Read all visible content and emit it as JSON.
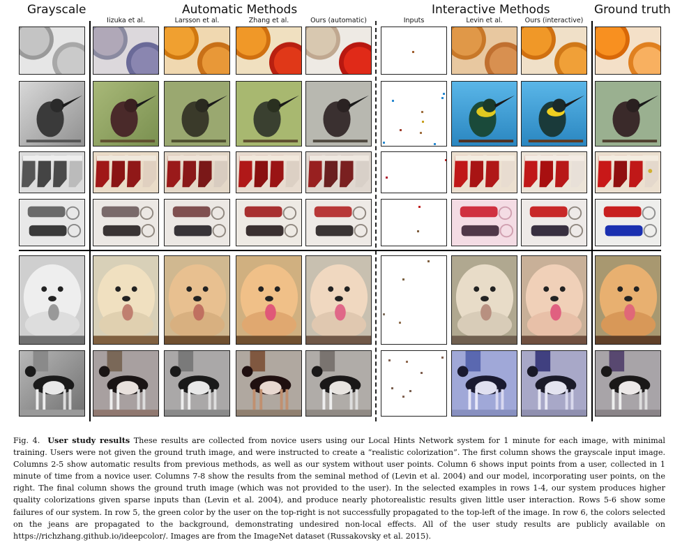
{
  "headers": {
    "grayscale": "Grayscale",
    "automatic": "Automatic Methods",
    "interactive": "Interactive Methods",
    "ground_truth": "Ground truth"
  },
  "columns": {
    "iizuka": "Iizuka et al.",
    "larsson": "Larsson et al.",
    "zhang": "Zhang et al.",
    "ours_auto": "Ours (automatic)",
    "inputs": "Inputs",
    "levin": "Levin et al.",
    "ours_interactive": "Ours (interactive)"
  },
  "rows": [
    "orange",
    "bird",
    "stockings",
    "keychain",
    "pomeranian",
    "dog"
  ],
  "caption": {
    "figure": "Fig. 4.",
    "title": "User study results",
    "body": "These results are collected from novice users using our Local Hints Network system for 1 minute for each image, with minimal training. Users were not given the ground truth image, and were instructed to create a “realistic colorization”. The first column shows the grayscale input image. Columns 2-5 show automatic results from previous methods, as well as our system without user points. Column 6 shows input points from a user, collected in 1 minute of time from a novice user. Columns 7-8 show the results from the seminal method of (Levin et al. 2004) and our model, incorporating user points, on the right. The final column shows the ground truth image (which was not provided to the user). In the selected examples in rows 1-4, our system produces higher quality colorizations given sparse inputs than (Levin et al. 2004), and produce nearly photorealistic results given little user interaction. Rows 5-6 show some failures of our system. In row 5, the green color by the user on the top-right is not successfully propagated to the top-left of the image. In row 6, the colors selected on the jeans are propagated to the background, demonstrating undesired non-local effects. All of the user study results are publicly available on https://richzhang.github.io/ideepcolor/. Images are from the ImageNet dataset (Russakovsky et al. 2015)."
  },
  "colors": {
    "orange": "#e07a1e",
    "red": "#c82a1a",
    "bird_green": "#8aa060",
    "sky_blue": "#4ab0e0",
    "stocking_red": "#b0141a",
    "keychain_blue": "#1a3ab0",
    "fur": "#e0b080"
  }
}
